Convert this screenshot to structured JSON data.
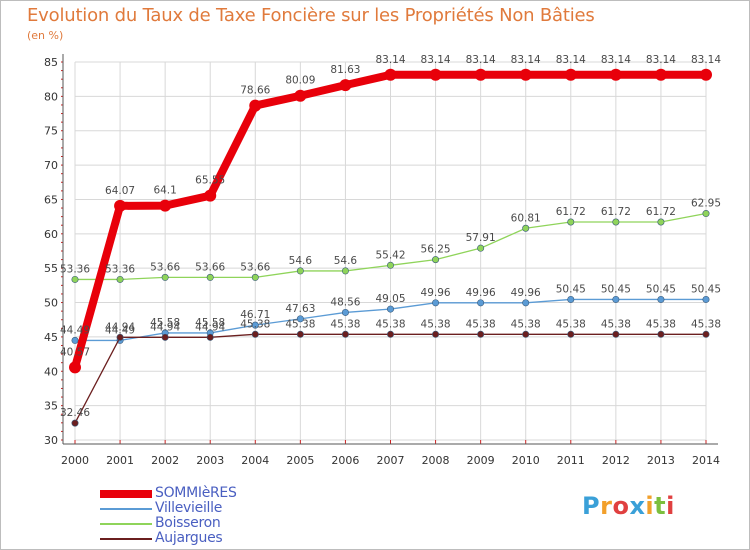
{
  "header": {
    "title": "Evolution du Taux de Taxe Foncière sur les Propriétés Non Bâties",
    "unit": "(en %)"
  },
  "colors": {
    "title": "#e07a3c",
    "grid": "#d8d8d8",
    "axis": "#555555",
    "axis_tick": "#cc2222"
  },
  "logo": {
    "letters": [
      {
        "char": "P",
        "color": "#3aa0d8"
      },
      {
        "char": "r",
        "color": "#f2a02b"
      },
      {
        "char": "o",
        "color": "#e04040"
      },
      {
        "char": "x",
        "color": "#3aa0d8"
      },
      {
        "char": "i",
        "color": "#f2a02b"
      },
      {
        "char": "t",
        "color": "#7cbf3e"
      },
      {
        "char": "i",
        "color": "#e04040"
      }
    ]
  },
  "chart_data": {
    "type": "line",
    "title": "Evolution du Taux de Taxe Foncière sur les Propriétés Non Bâties",
    "ylabel": "(en %)",
    "xlabel": "",
    "x": [
      "2000",
      "2001",
      "2002",
      "2003",
      "2004",
      "2005",
      "2006",
      "2007",
      "2008",
      "2009",
      "2010",
      "2011",
      "2012",
      "2013",
      "2014"
    ],
    "ylim": [
      30,
      85
    ],
    "yticks": [
      30,
      35,
      40,
      45,
      50,
      55,
      60,
      65,
      70,
      75,
      80,
      85
    ],
    "grid": true,
    "series": [
      {
        "name": "SOMMIèRES",
        "color": "#e8000a",
        "weight": "bold",
        "values": [
          40.57,
          64.07,
          64.1,
          65.55,
          78.66,
          80.09,
          81.63,
          83.14,
          83.14,
          83.14,
          83.14,
          83.14,
          83.14,
          83.14,
          83.14
        ],
        "labels": [
          "40.57",
          "64.07",
          "64.1",
          "65.55",
          "78.66",
          "80.09",
          "81.63",
          "83.14",
          "83.14",
          "83.14",
          "83.14",
          "83.14",
          "83.14",
          "83.14",
          "83.14"
        ]
      },
      {
        "name": "Villevieille",
        "color": "#5b9bd5",
        "weight": "thin",
        "values": [
          44.49,
          44.49,
          45.58,
          45.58,
          46.71,
          47.63,
          48.56,
          49.05,
          49.96,
          49.96,
          49.96,
          50.45,
          50.45,
          50.45,
          50.45
        ],
        "labels": [
          "44.49",
          "44.49",
          "45.58",
          "45.58",
          "46.71",
          "47.63",
          "48.56",
          "49.05",
          "49.96",
          "49.96",
          "49.96",
          "50.45",
          "50.45",
          "50.45",
          "50.45"
        ]
      },
      {
        "name": "Boisseron",
        "color": "#8fd45a",
        "weight": "thin",
        "values": [
          53.36,
          53.36,
          53.66,
          53.66,
          53.66,
          54.6,
          54.6,
          55.42,
          56.25,
          57.91,
          60.81,
          61.72,
          61.72,
          61.72,
          62.95
        ],
        "labels": [
          "53.36",
          "53.36",
          "53.66",
          "53.66",
          "53.66",
          "54.6",
          "54.6",
          "55.42",
          "56.25",
          "57.91",
          "60.81",
          "61.72",
          "61.72",
          "61.72",
          "62.95"
        ]
      },
      {
        "name": "Aujargues",
        "color": "#6b1f1f",
        "weight": "thin",
        "values": [
          32.46,
          44.94,
          44.94,
          44.94,
          45.38,
          45.38,
          45.38,
          45.38,
          45.38,
          45.38,
          45.38,
          45.38,
          45.38,
          45.38,
          45.38
        ],
        "labels": [
          "32.46",
          "44.94",
          "44.94",
          "44.94",
          "45.38",
          "45.38",
          "45.38",
          "45.38",
          "45.38",
          "45.38",
          "45.38",
          "45.38",
          "45.38",
          "45.38",
          "45.38"
        ]
      }
    ]
  }
}
